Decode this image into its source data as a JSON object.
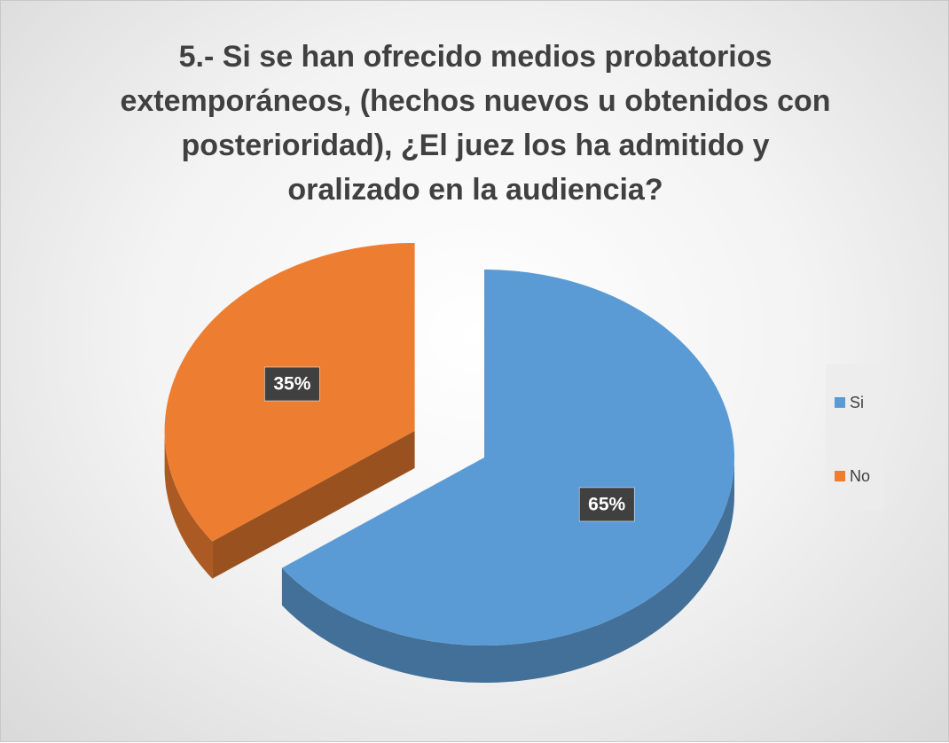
{
  "chart_data": {
    "type": "pie",
    "title": "5.- Si se han ofrecido medios probatorios extemporáneos, (hechos nuevos u obtenidos con posterioridad), ¿El juez los ha admitido y oralizado en la audiencia?",
    "categories": [
      "Si",
      "No"
    ],
    "values": [
      65,
      35
    ],
    "value_labels": [
      "65%",
      "35%"
    ],
    "colors": [
      "#5b9bd5",
      "#ed7d31"
    ],
    "legend": "right"
  }
}
